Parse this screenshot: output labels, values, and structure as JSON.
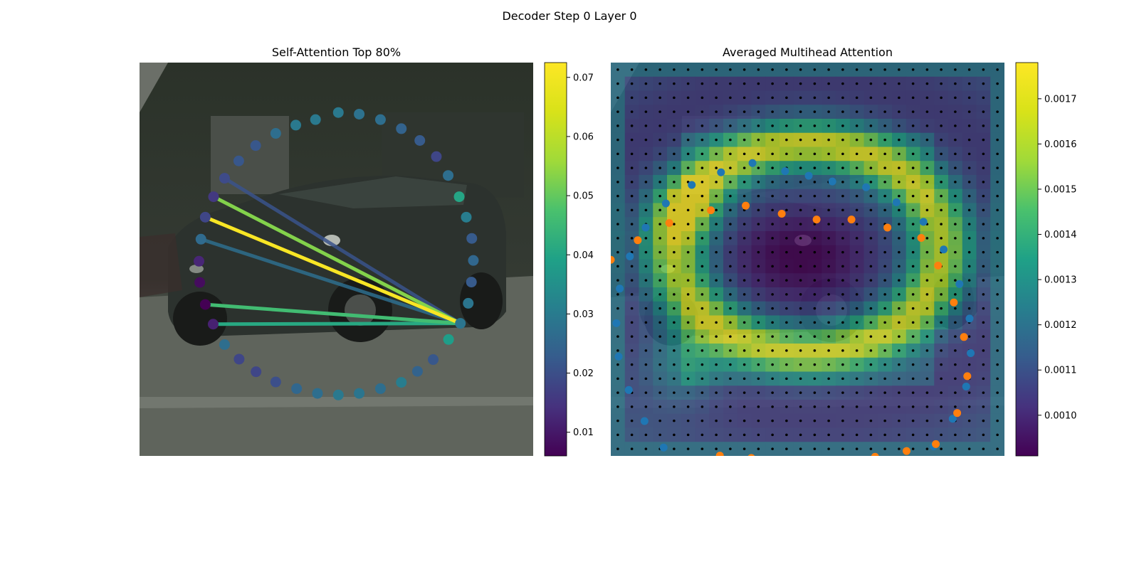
{
  "figure": {
    "suptitle": "Decoder Step 0 Layer 0"
  },
  "chart_data": [
    {
      "type": "scatter",
      "title": "Self-Attention Top 80%",
      "xlabel": "",
      "ylabel": "",
      "xlim": [
        0,
        100
      ],
      "ylim": [
        0,
        100
      ],
      "grid": false,
      "background_image": "street-scene-car",
      "colormap": "viridis",
      "colorbar": {
        "range": [
          0.006,
          0.0725
        ],
        "ticks": [
          "0.01",
          "0.02",
          "0.03",
          "0.04",
          "0.05",
          "0.06",
          "0.07"
        ],
        "tick_values": [
          0.01,
          0.02,
          0.03,
          0.04,
          0.05,
          0.06,
          0.07
        ]
      },
      "query_point": {
        "x": 81.5,
        "y": 66.3
      },
      "points": [
        {
          "x": 50.5,
          "y": 12.7,
          "v": 0.033
        },
        {
          "x": 55.8,
          "y": 13.1,
          "v": 0.031
        },
        {
          "x": 61.2,
          "y": 14.5,
          "v": 0.03
        },
        {
          "x": 66.5,
          "y": 16.8,
          "v": 0.027
        },
        {
          "x": 71.2,
          "y": 19.8,
          "v": 0.025
        },
        {
          "x": 75.4,
          "y": 23.9,
          "v": 0.02
        },
        {
          "x": 78.4,
          "y": 28.7,
          "v": 0.03
        },
        {
          "x": 81.2,
          "y": 34.1,
          "v": 0.045
        },
        {
          "x": 83.0,
          "y": 39.3,
          "v": 0.034
        },
        {
          "x": 84.4,
          "y": 44.7,
          "v": 0.025
        },
        {
          "x": 84.8,
          "y": 50.3,
          "v": 0.028
        },
        {
          "x": 84.3,
          "y": 55.8,
          "v": 0.025
        },
        {
          "x": 83.5,
          "y": 61.2,
          "v": 0.032
        },
        {
          "x": 81.5,
          "y": 66.3,
          "v": 0.032
        },
        {
          "x": 78.5,
          "y": 70.4,
          "v": 0.043
        },
        {
          "x": 74.6,
          "y": 75.5,
          "v": 0.024
        },
        {
          "x": 70.6,
          "y": 78.5,
          "v": 0.027
        },
        {
          "x": 66.5,
          "y": 81.3,
          "v": 0.034
        },
        {
          "x": 61.2,
          "y": 82.9,
          "v": 0.03
        },
        {
          "x": 55.8,
          "y": 84.1,
          "v": 0.032
        },
        {
          "x": 50.5,
          "y": 84.5,
          "v": 0.033
        },
        {
          "x": 45.2,
          "y": 84.1,
          "v": 0.03
        },
        {
          "x": 39.9,
          "y": 82.9,
          "v": 0.028
        },
        {
          "x": 34.6,
          "y": 81.2,
          "v": 0.022
        },
        {
          "x": 29.6,
          "y": 78.6,
          "v": 0.02
        },
        {
          "x": 25.3,
          "y": 75.4,
          "v": 0.02
        },
        {
          "x": 21.6,
          "y": 71.7,
          "v": 0.03
        },
        {
          "x": 18.7,
          "y": 66.5,
          "v": 0.012
        },
        {
          "x": 16.7,
          "y": 61.5,
          "v": 0.006
        },
        {
          "x": 15.3,
          "y": 55.9,
          "v": 0.008
        },
        {
          "x": 15.1,
          "y": 50.5,
          "v": 0.013
        },
        {
          "x": 15.6,
          "y": 44.9,
          "v": 0.029
        },
        {
          "x": 16.7,
          "y": 39.3,
          "v": 0.02
        },
        {
          "x": 18.8,
          "y": 34.1,
          "v": 0.017
        },
        {
          "x": 21.6,
          "y": 29.4,
          "v": 0.021
        },
        {
          "x": 25.2,
          "y": 25.0,
          "v": 0.024
        },
        {
          "x": 29.5,
          "y": 21.1,
          "v": 0.024
        },
        {
          "x": 34.6,
          "y": 18.0,
          "v": 0.03
        },
        {
          "x": 39.7,
          "y": 15.9,
          "v": 0.033
        },
        {
          "x": 44.7,
          "y": 14.5,
          "v": 0.033
        }
      ],
      "edges": [
        {
          "to": {
            "x": 16.7,
            "y": 39.3
          },
          "weight": 0.072
        },
        {
          "to": {
            "x": 18.8,
            "y": 34.1
          },
          "weight": 0.06
        },
        {
          "to": {
            "x": 16.7,
            "y": 61.5
          },
          "weight": 0.052
        },
        {
          "to": {
            "x": 18.7,
            "y": 66.5
          },
          "weight": 0.046
        },
        {
          "to": {
            "x": 15.6,
            "y": 44.9
          },
          "weight": 0.03
        },
        {
          "to": {
            "x": 21.6,
            "y": 29.4
          },
          "weight": 0.023
        }
      ]
    },
    {
      "type": "heatmap",
      "title": "Averaged Multihead Attention",
      "xlabel": "",
      "ylabel": "",
      "grid_shape": [
        28,
        28
      ],
      "background_image": "street-scene-car",
      "colormap": "viridis",
      "colorbar": {
        "range": [
          0.00091,
          0.00178
        ],
        "ticks": [
          "0.0010",
          "0.0011",
          "0.0012",
          "0.0013",
          "0.0014",
          "0.0015",
          "0.0016",
          "0.0017"
        ],
        "tick_values": [
          0.001,
          0.0011,
          0.0012,
          0.0013,
          0.0014,
          0.0015,
          0.0016,
          0.0017
        ]
      },
      "heat_model": {
        "base": 0.00118,
        "ring_amp": 0.00058,
        "ring_center": [
          14.0,
          13.2
        ],
        "ring_radius": [
          9.6,
          7.4
        ],
        "ring_width": 1.7,
        "top_left_peak": [
          5.5,
          10.5
        ],
        "bottom_left_peak": [
          5.0,
          21.5
        ],
        "inner_dip": [
          13.5,
          13.8
        ]
      },
      "series": [
        {
          "name": "reference_points",
          "color": "#1f77b4",
          "style": "circle-ring",
          "points": [
            [
              15.4,
              5.5
            ],
            [
              18.4,
              6.0
            ],
            [
              21.1,
              7.3
            ],
            [
              23.5,
              9.0
            ],
            [
              25.3,
              11.4
            ],
            [
              26.7,
              14.4
            ],
            [
              27.6,
              17.4
            ],
            [
              27.7,
              20.4
            ],
            [
              27.3,
              23.3
            ],
            [
              26.1,
              26.1
            ],
            [
              24.4,
              28.5
            ],
            [
              22.1,
              30.4
            ],
            [
              19.5,
              32.0
            ],
            [
              16.8,
              32.9
            ],
            [
              13.9,
              33.4
            ],
            [
              11.0,
              33.2
            ],
            [
              8.0,
              32.9
            ],
            [
              5.2,
              32.0
            ],
            [
              2.6,
              30.7
            ],
            [
              0.4,
              28.6
            ],
            [
              -1.3,
              26.3
            ],
            [
              -2.7,
              23.6
            ],
            [
              -3.6,
              20.7
            ],
            [
              -3.8,
              17.8
            ],
            [
              -3.5,
              14.8
            ],
            [
              -2.6,
              12.0
            ],
            [
              -1.2,
              9.5
            ],
            [
              0.6,
              7.4
            ],
            [
              2.9,
              5.8
            ],
            [
              5.5,
              4.7
            ],
            [
              8.3,
              3.9
            ],
            [
              11.2,
              4.6
            ],
            [
              13.3,
              5.0
            ]
          ]
        },
        {
          "name": "sampling_points",
          "color": "#ff7f0e",
          "style": "circle-ring",
          "points": [
            [
              4.6,
              8.0
            ],
            [
              7.7,
              7.6
            ],
            [
              10.9,
              8.3
            ],
            [
              14.0,
              8.8
            ],
            [
              17.1,
              8.8
            ],
            [
              20.3,
              9.5
            ],
            [
              23.3,
              10.4
            ],
            [
              24.8,
              12.8
            ],
            [
              26.2,
              16.0
            ],
            [
              27.1,
              19.0
            ],
            [
              27.4,
              22.4
            ],
            [
              26.5,
              25.6
            ],
            [
              24.6,
              28.3
            ],
            [
              22.0,
              28.9
            ],
            [
              19.2,
              29.4
            ],
            [
              16.4,
              29.7
            ],
            [
              13.6,
              30.0
            ],
            [
              10.8,
              29.8
            ],
            [
              8.2,
              29.5
            ],
            [
              5.4,
              29.3
            ],
            [
              3.0,
              29.9
            ],
            [
              0.4,
              30.3
            ],
            [
              -2.2,
              30.6
            ],
            [
              -4.7,
              30.9
            ],
            [
              -6.9,
              30.4
            ],
            [
              -8.4,
              28.5
            ],
            [
              -9.3,
              26.0
            ],
            [
              -9.5,
              23.3
            ],
            [
              -9.1,
              20.3
            ],
            [
              -8.0,
              17.3
            ],
            [
              -6.4,
              14.6
            ],
            [
              -4.3,
              12.3
            ],
            [
              -1.9,
              10.6
            ],
            [
              0.9,
              9.1
            ]
          ]
        }
      ]
    }
  ]
}
